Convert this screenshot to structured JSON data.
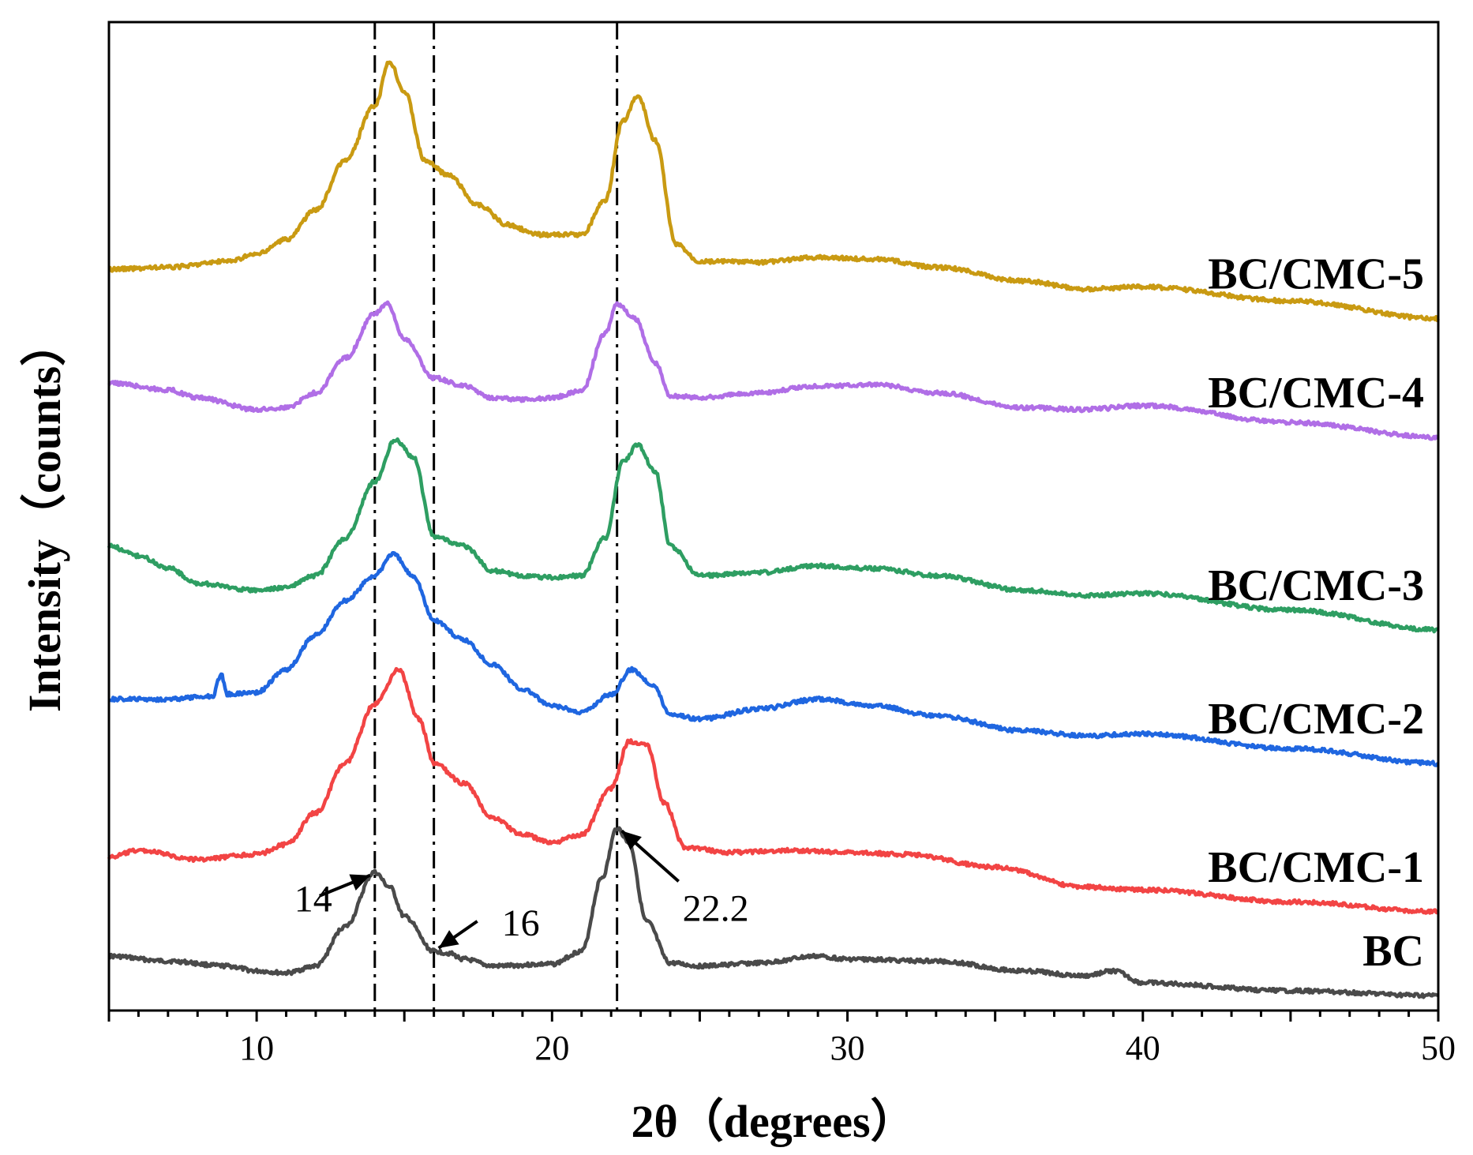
{
  "chart_data": {
    "type": "line",
    "xlabel": "2θ（degrees）",
    "ylabel": "Intensity（counts）",
    "xlim": [
      5,
      50
    ],
    "xticks": [
      10,
      20,
      30,
      40,
      50
    ],
    "ylim": [
      0,
      1000
    ],
    "y_tick_labels": false,
    "grid": false,
    "reference_lines": [
      14,
      16,
      22.2
    ],
    "annotations": [
      {
        "text": "14",
        "x": 14
      },
      {
        "text": "16",
        "x": 16
      },
      {
        "text": "22.2",
        "x": 22.2
      }
    ],
    "series": [
      {
        "name": "BC",
        "color": "#4a4a4a",
        "points": [
          [
            5,
            55
          ],
          [
            7,
            50
          ],
          [
            9,
            45
          ],
          [
            10,
            40
          ],
          [
            11,
            38
          ],
          [
            12,
            45
          ],
          [
            13,
            85
          ],
          [
            14,
            140
          ],
          [
            14.5,
            125
          ],
          [
            15,
            95
          ],
          [
            16,
            60
          ],
          [
            16.5,
            58
          ],
          [
            17,
            52
          ],
          [
            18,
            45
          ],
          [
            20,
            47
          ],
          [
            21,
            60
          ],
          [
            21.7,
            135
          ],
          [
            22.2,
            185
          ],
          [
            22.6,
            170
          ],
          [
            23.2,
            90
          ],
          [
            24,
            48
          ],
          [
            25,
            45
          ],
          [
            27,
            48
          ],
          [
            29,
            55
          ],
          [
            30,
            52
          ],
          [
            33,
            50
          ],
          [
            36,
            40
          ],
          [
            38,
            35
          ],
          [
            39,
            40
          ],
          [
            40,
            28
          ],
          [
            45,
            20
          ],
          [
            50,
            15
          ]
        ]
      },
      {
        "name": "BC/CMC-1",
        "color": "#f24444",
        "points": [
          [
            5,
            155
          ],
          [
            6,
            162
          ],
          [
            8,
            153
          ],
          [
            10,
            158
          ],
          [
            11,
            168
          ],
          [
            12,
            200
          ],
          [
            13,
            250
          ],
          [
            14,
            310
          ],
          [
            14.8,
            345
          ],
          [
            15.5,
            295
          ],
          [
            16,
            250
          ],
          [
            17,
            230
          ],
          [
            18,
            195
          ],
          [
            19,
            178
          ],
          [
            20,
            170
          ],
          [
            21,
            178
          ],
          [
            22,
            225
          ],
          [
            22.6,
            272
          ],
          [
            23.2,
            270
          ],
          [
            23.8,
            210
          ],
          [
            24.5,
            165
          ],
          [
            26,
            160
          ],
          [
            28,
            162
          ],
          [
            30,
            160
          ],
          [
            32,
            158
          ],
          [
            35,
            145
          ],
          [
            38,
            125
          ],
          [
            40,
            122
          ],
          [
            45,
            110
          ],
          [
            50,
            100
          ]
        ]
      },
      {
        "name": "BC/CMC-2",
        "color": "#1f66e0",
        "points": [
          [
            5,
            315
          ],
          [
            7,
            315
          ],
          [
            8.5,
            318
          ],
          [
            8.8,
            340
          ],
          [
            9,
            320
          ],
          [
            10,
            322
          ],
          [
            11,
            345
          ],
          [
            12,
            380
          ],
          [
            13,
            415
          ],
          [
            14,
            440
          ],
          [
            14.6,
            462
          ],
          [
            15.3,
            440
          ],
          [
            16,
            395
          ],
          [
            17,
            375
          ],
          [
            18,
            350
          ],
          [
            19,
            325
          ],
          [
            20,
            308
          ],
          [
            21,
            302
          ],
          [
            22,
            320
          ],
          [
            22.7,
            345
          ],
          [
            23.4,
            330
          ],
          [
            24,
            300
          ],
          [
            25,
            295
          ],
          [
            27,
            305
          ],
          [
            29,
            315
          ],
          [
            31,
            308
          ],
          [
            33,
            298
          ],
          [
            36,
            283
          ],
          [
            38,
            278
          ],
          [
            40,
            280
          ],
          [
            45,
            265
          ],
          [
            50,
            250
          ]
        ]
      },
      {
        "name": "BC/CMC-3",
        "color": "#2e9e62",
        "points": [
          [
            5,
            470
          ],
          [
            6,
            460
          ],
          [
            7,
            448
          ],
          [
            8,
            432
          ],
          [
            10,
            425
          ],
          [
            11,
            428
          ],
          [
            12,
            440
          ],
          [
            13,
            478
          ],
          [
            14,
            535
          ],
          [
            14.7,
            578
          ],
          [
            15.3,
            560
          ],
          [
            16,
            480
          ],
          [
            17,
            470
          ],
          [
            18,
            445
          ],
          [
            19,
            440
          ],
          [
            20,
            438
          ],
          [
            21,
            440
          ],
          [
            21.8,
            478
          ],
          [
            22.4,
            555
          ],
          [
            22.9,
            572
          ],
          [
            23.5,
            545
          ],
          [
            24,
            470
          ],
          [
            25,
            440
          ],
          [
            27,
            443
          ],
          [
            29,
            450
          ],
          [
            31,
            447
          ],
          [
            33,
            440
          ],
          [
            36,
            425
          ],
          [
            38,
            420
          ],
          [
            40,
            422
          ],
          [
            45,
            405
          ],
          [
            50,
            385
          ]
        ]
      },
      {
        "name": "BC/CMC-4",
        "color": "#b06ee6",
        "points": [
          [
            5,
            635
          ],
          [
            7,
            628
          ],
          [
            8,
            620
          ],
          [
            10,
            608
          ],
          [
            11,
            610
          ],
          [
            12,
            625
          ],
          [
            13,
            660
          ],
          [
            14,
            705
          ],
          [
            14.4,
            715
          ],
          [
            15,
            680
          ],
          [
            16,
            640
          ],
          [
            17,
            632
          ],
          [
            18,
            620
          ],
          [
            19,
            618
          ],
          [
            20,
            620
          ],
          [
            21,
            627
          ],
          [
            21.8,
            685
          ],
          [
            22.2,
            715
          ],
          [
            22.8,
            700
          ],
          [
            23.5,
            655
          ],
          [
            24,
            622
          ],
          [
            25,
            620
          ],
          [
            27,
            625
          ],
          [
            29,
            632
          ],
          [
            31,
            633
          ],
          [
            33,
            625
          ],
          [
            36,
            610
          ],
          [
            38,
            608
          ],
          [
            40,
            612
          ],
          [
            45,
            595
          ],
          [
            50,
            580
          ]
        ]
      },
      {
        "name": "BC/CMC-5",
        "color": "#c99a12",
        "points": [
          [
            5,
            750
          ],
          [
            7,
            752
          ],
          [
            9,
            758
          ],
          [
            10,
            765
          ],
          [
            11,
            780
          ],
          [
            12,
            810
          ],
          [
            13,
            860
          ],
          [
            14,
            915
          ],
          [
            14.5,
            960
          ],
          [
            15,
            930
          ],
          [
            15.7,
            860
          ],
          [
            16.5,
            845
          ],
          [
            17.5,
            815
          ],
          [
            18.5,
            795
          ],
          [
            19.5,
            785
          ],
          [
            21,
            785
          ],
          [
            21.8,
            820
          ],
          [
            22.4,
            900
          ],
          [
            22.9,
            925
          ],
          [
            23.5,
            880
          ],
          [
            24.2,
            775
          ],
          [
            25,
            758
          ],
          [
            27,
            757
          ],
          [
            29,
            762
          ],
          [
            31,
            760
          ],
          [
            33,
            752
          ],
          [
            36,
            738
          ],
          [
            38,
            730
          ],
          [
            40,
            732
          ],
          [
            45,
            718
          ],
          [
            50,
            700
          ]
        ]
      }
    ]
  }
}
